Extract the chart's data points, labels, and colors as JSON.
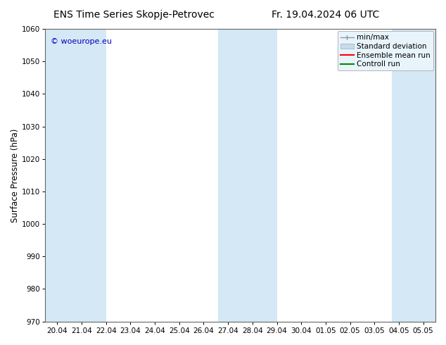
{
  "title": "ENS Time Series Skopje-Petrovec",
  "title2": "Fr. 19.04.2024 06 UTC",
  "ylabel": "Surface Pressure (hPa)",
  "ylim": [
    970,
    1060
  ],
  "yticks": [
    970,
    980,
    990,
    1000,
    1010,
    1020,
    1030,
    1040,
    1050,
    1060
  ],
  "xtick_labels": [
    "20.04",
    "21.04",
    "22.04",
    "23.04",
    "24.04",
    "25.04",
    "26.04",
    "27.04",
    "28.04",
    "29.04",
    "30.04",
    "01.05",
    "02.05",
    "03.05",
    "04.05",
    "05.05"
  ],
  "band_color": "#d4e8f5",
  "band_edge_color": "#b8d4e8",
  "background_color": "#ffffff",
  "watermark": "© woeurope.eu",
  "watermark_color": "#0000bb",
  "legend_facecolor": "#e8f4fc",
  "legend_edgecolor": "#aaaaaa",
  "title_fontsize": 10,
  "tick_fontsize": 7.5,
  "ylabel_fontsize": 8.5,
  "legend_fontsize": 7.5
}
